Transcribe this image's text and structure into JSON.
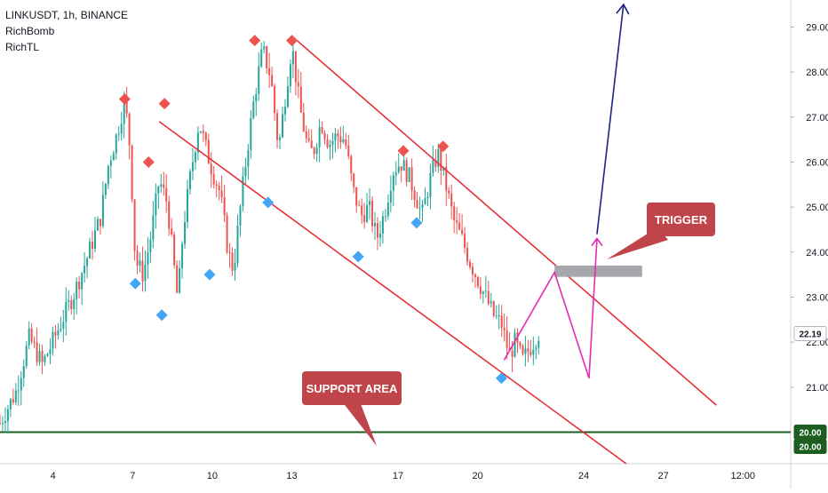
{
  "legend": {
    "symbol": "LINKUSDT, 1h, BINANCE",
    "indicator_1": "RichBomb",
    "indicator_2": "RichTL"
  },
  "chart_data": {
    "type": "candlestick",
    "symbol": "LINKUSDT",
    "timeframe": "1h",
    "exchange": "BINANCE",
    "y_ticks": [
      21.0,
      22.0,
      23.0,
      24.0,
      25.0,
      26.0,
      27.0,
      28.0,
      29.0
    ],
    "ylim": [
      19.3,
      29.6
    ],
    "x_ticks": [
      "4",
      "7",
      "10",
      "13",
      "17",
      "20",
      "24",
      "27",
      "12:00"
    ],
    "x_tick_days": [
      4,
      7,
      10,
      13,
      17,
      20,
      24,
      27,
      30
    ],
    "xlim": [
      2.0,
      31.8
    ],
    "current_price": 22.19,
    "current_price_label": "22.19",
    "support_level": 20.0,
    "support_label_1": "20.00",
    "support_label_2": "20.00",
    "price_path": [
      [
        2.0,
        20.2
      ],
      [
        2.6,
        20.9
      ],
      [
        3.1,
        22.1
      ],
      [
        3.6,
        21.5
      ],
      [
        4.2,
        22.3
      ],
      [
        4.8,
        23.1
      ],
      [
        5.3,
        23.9
      ],
      [
        5.8,
        24.8
      ],
      [
        6.1,
        26.0
      ],
      [
        6.4,
        26.6
      ],
      [
        6.7,
        27.4
      ],
      [
        6.9,
        26.3
      ],
      [
        7.1,
        23.8
      ],
      [
        7.4,
        23.5
      ],
      [
        7.7,
        24.4
      ],
      [
        8.0,
        25.6
      ],
      [
        8.3,
        25.1
      ],
      [
        8.5,
        24.0
      ],
      [
        8.7,
        22.9
      ],
      [
        8.9,
        24.5
      ],
      [
        9.2,
        25.8
      ],
      [
        9.5,
        26.9
      ],
      [
        9.9,
        26.0
      ],
      [
        10.3,
        25.3
      ],
      [
        10.6,
        24.0
      ],
      [
        10.8,
        23.6
      ],
      [
        11.0,
        24.7
      ],
      [
        11.3,
        26.2
      ],
      [
        11.6,
        27.5
      ],
      [
        11.9,
        28.5
      ],
      [
        12.2,
        27.9
      ],
      [
        12.5,
        26.3
      ],
      [
        12.8,
        27.7
      ],
      [
        13.0,
        28.6
      ],
      [
        13.3,
        27.2
      ],
      [
        13.6,
        26.3
      ],
      [
        13.8,
        26.2
      ],
      [
        14.1,
        26.9
      ],
      [
        14.4,
        26.4
      ],
      [
        14.7,
        26.6
      ],
      [
        15.0,
        26.5
      ],
      [
        15.3,
        25.4
      ],
      [
        15.6,
        24.8
      ],
      [
        15.9,
        25.0
      ],
      [
        16.2,
        24.3
      ],
      [
        16.5,
        24.9
      ],
      [
        16.8,
        25.8
      ],
      [
        17.1,
        26.0
      ],
      [
        17.4,
        25.7
      ],
      [
        17.7,
        25.2
      ],
      [
        17.9,
        24.8
      ],
      [
        18.2,
        25.6
      ],
      [
        18.5,
        26.2
      ],
      [
        18.8,
        25.5
      ],
      [
        19.1,
        24.7
      ],
      [
        19.4,
        24.3
      ],
      [
        19.7,
        23.8
      ],
      [
        20.0,
        23.4
      ],
      [
        20.3,
        23.0
      ],
      [
        20.6,
        22.6
      ],
      [
        20.9,
        22.4
      ],
      [
        21.2,
        21.7
      ],
      [
        21.4,
        22.0
      ],
      [
        21.7,
        21.6
      ],
      [
        22.0,
        21.9
      ],
      [
        22.3,
        22.2
      ]
    ],
    "sell_signals": [
      {
        "day": 6.7,
        "price": 27.4
      },
      {
        "day": 7.6,
        "price": 26.0
      },
      {
        "day": 8.2,
        "price": 27.3
      },
      {
        "day": 11.6,
        "price": 28.7
      },
      {
        "day": 13.0,
        "price": 28.7
      },
      {
        "day": 17.2,
        "price": 26.25
      },
      {
        "day": 18.7,
        "price": 26.35
      }
    ],
    "buy_signals": [
      {
        "day": 7.1,
        "price": 23.3
      },
      {
        "day": 8.1,
        "price": 22.6
      },
      {
        "day": 9.9,
        "price": 23.5
      },
      {
        "day": 12.1,
        "price": 25.1
      },
      {
        "day": 15.5,
        "price": 23.9
      },
      {
        "day": 17.7,
        "price": 24.65
      },
      {
        "day": 20.9,
        "price": 21.2
      }
    ],
    "channel_upper": [
      [
        13.0,
        28.8
      ],
      [
        29.0,
        20.6
      ]
    ],
    "channel_lower": [
      [
        8.0,
        26.9
      ],
      [
        25.6,
        19.3
      ]
    ],
    "trigger_box": {
      "day_from": 22.9,
      "day_to": 26.2,
      "price_from": 23.45,
      "price_to": 23.7
    },
    "projection_path": [
      [
        21.0,
        21.6
      ],
      [
        22.9,
        23.55
      ],
      [
        24.2,
        21.2
      ],
      [
        24.5,
        24.3
      ]
    ],
    "breakout_arrow": [
      [
        24.5,
        24.4
      ],
      [
        25.5,
        29.5
      ]
    ]
  },
  "annotations": {
    "support": "SUPPORT AREA",
    "trigger": "TRIGGER"
  },
  "colors": {
    "bull": "#26a69a",
    "bear": "#ef5350",
    "channel": "#e8303a",
    "support_line": "#1b5e20",
    "projection": "#e62bb0",
    "breakout": "#1a237e",
    "callout": "#c0454a",
    "trigger_box": "#a6a6ad",
    "sell_marker": "#ef5350",
    "buy_marker": "#42a5f5",
    "price_tag": "#ffffff",
    "support_tag": "#1b5e20"
  }
}
